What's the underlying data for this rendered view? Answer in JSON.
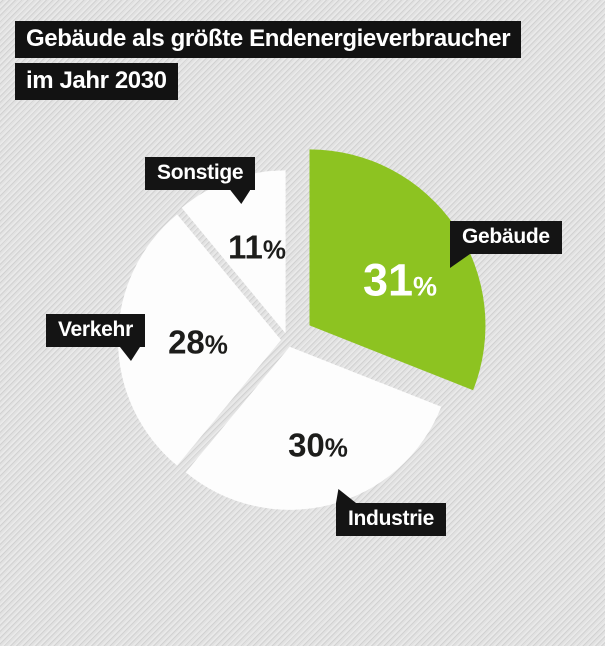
{
  "title": {
    "line1": "Gebäude als größte Endenergieverbraucher",
    "line2": "im Jahr 2030"
  },
  "chart_data": {
    "type": "pie",
    "title": "Gebäude als größte Endenergieverbraucher im Jahr 2030",
    "unit": "%",
    "direction": "clockwise",
    "start_angle_deg": 0,
    "legend_position": "callout-tags",
    "slices": [
      {
        "label": "Gebäude",
        "value": 31,
        "color": "#8dc321",
        "value_text_color": "#ffffff",
        "exploded": true
      },
      {
        "label": "Industrie",
        "value": 30,
        "color": "#fdfdfd",
        "value_text_color": "#1d1d1b",
        "exploded": false
      },
      {
        "label": "Verkehr",
        "value": 28,
        "color": "#fdfdfd",
        "value_text_color": "#1d1d1b",
        "exploded": false
      },
      {
        "label": "Sonstige",
        "value": 11,
        "color": "#fdfdfd",
        "value_text_color": "#1d1d1b",
        "exploded": false
      }
    ]
  },
  "colors": {
    "background": "#e3e3e3",
    "stripe": "#d2d2d2",
    "tag_background": "#141414",
    "tag_text": "#ffffff",
    "accent_green": "#8dc321"
  }
}
